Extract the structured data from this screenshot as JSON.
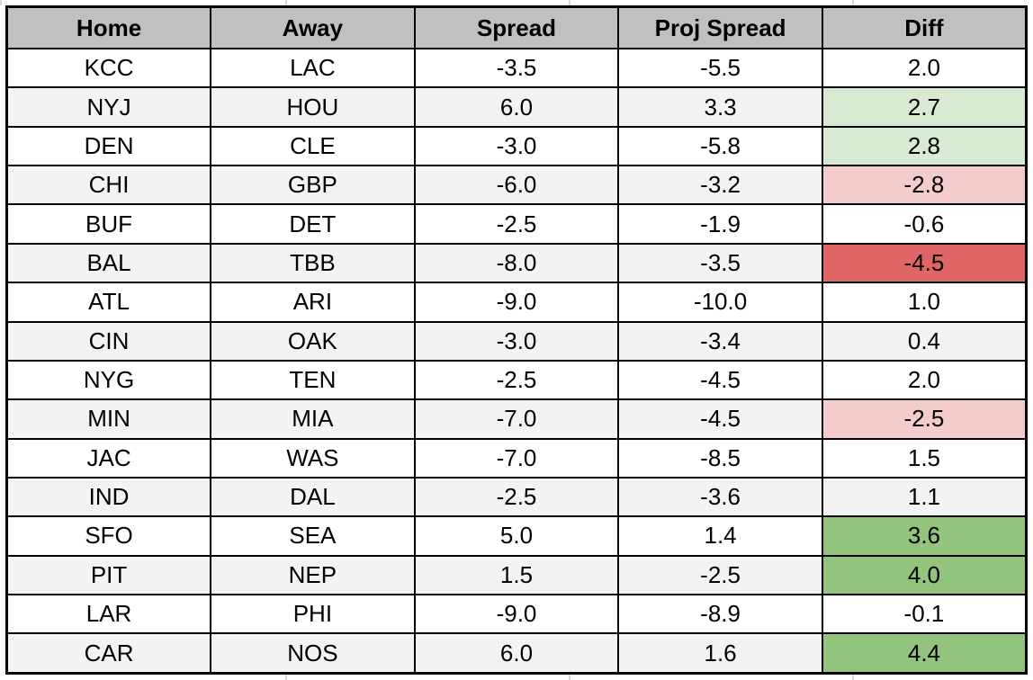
{
  "colors": {
    "header_bg": "#c0c0c0",
    "row_alt": "#f3f3f3",
    "light_green": "#d9ead3",
    "green": "#93c47d",
    "pink": "#f4cccc",
    "red": "#e06666",
    "border": "#000000",
    "gridline": "#d9d9d9"
  },
  "table": {
    "columns": [
      {
        "key": "home",
        "label": "Home"
      },
      {
        "key": "away",
        "label": "Away"
      },
      {
        "key": "spread",
        "label": "Spread"
      },
      {
        "key": "proj_spread",
        "label": "Proj Spread"
      },
      {
        "key": "diff",
        "label": "Diff"
      }
    ],
    "rows": [
      {
        "home": "KCC",
        "away": "LAC",
        "spread": "-3.5",
        "proj_spread": "-5.5",
        "diff": "2.0",
        "diff_highlight": "none"
      },
      {
        "home": "NYJ",
        "away": "HOU",
        "spread": "6.0",
        "proj_spread": "3.3",
        "diff": "2.7",
        "diff_highlight": "light-green"
      },
      {
        "home": "DEN",
        "away": "CLE",
        "spread": "-3.0",
        "proj_spread": "-5.8",
        "diff": "2.8",
        "diff_highlight": "light-green"
      },
      {
        "home": "CHI",
        "away": "GBP",
        "spread": "-6.0",
        "proj_spread": "-3.2",
        "diff": "-2.8",
        "diff_highlight": "pink"
      },
      {
        "home": "BUF",
        "away": "DET",
        "spread": "-2.5",
        "proj_spread": "-1.9",
        "diff": "-0.6",
        "diff_highlight": "none"
      },
      {
        "home": "BAL",
        "away": "TBB",
        "spread": "-8.0",
        "proj_spread": "-3.5",
        "diff": "-4.5",
        "diff_highlight": "red"
      },
      {
        "home": "ATL",
        "away": "ARI",
        "spread": "-9.0",
        "proj_spread": "-10.0",
        "diff": "1.0",
        "diff_highlight": "none"
      },
      {
        "home": "CIN",
        "away": "OAK",
        "spread": "-3.0",
        "proj_spread": "-3.4",
        "diff": "0.4",
        "diff_highlight": "none"
      },
      {
        "home": "NYG",
        "away": "TEN",
        "spread": "-2.5",
        "proj_spread": "-4.5",
        "diff": "2.0",
        "diff_highlight": "none"
      },
      {
        "home": "MIN",
        "away": "MIA",
        "spread": "-7.0",
        "proj_spread": "-4.5",
        "diff": "-2.5",
        "diff_highlight": "pink"
      },
      {
        "home": "JAC",
        "away": "WAS",
        "spread": "-7.0",
        "proj_spread": "-8.5",
        "diff": "1.5",
        "diff_highlight": "none"
      },
      {
        "home": "IND",
        "away": "DAL",
        "spread": "-2.5",
        "proj_spread": "-3.6",
        "diff": "1.1",
        "diff_highlight": "none"
      },
      {
        "home": "SFO",
        "away": "SEA",
        "spread": "5.0",
        "proj_spread": "1.4",
        "diff": "3.6",
        "diff_highlight": "green"
      },
      {
        "home": "PIT",
        "away": "NEP",
        "spread": "1.5",
        "proj_spread": "-2.5",
        "diff": "4.0",
        "diff_highlight": "green"
      },
      {
        "home": "LAR",
        "away": "PHI",
        "spread": "-9.0",
        "proj_spread": "-8.9",
        "diff": "-0.1",
        "diff_highlight": "none"
      },
      {
        "home": "CAR",
        "away": "NOS",
        "spread": "6.0",
        "proj_spread": "1.6",
        "diff": "4.4",
        "diff_highlight": "green"
      }
    ]
  }
}
